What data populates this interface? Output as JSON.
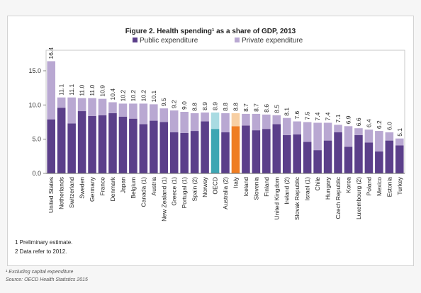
{
  "chart_data": {
    "type": "bar",
    "stacked": true,
    "title": "Figure 2. Health spending¹ as a share of GDP, 2013",
    "xlabel": "",
    "ylabel": "",
    "ylim": [
      0,
      18
    ],
    "yticks": [
      0,
      5,
      10,
      15
    ],
    "ytick_labels": [
      "0.0",
      "5.0",
      "10.0",
      "15.0"
    ],
    "grid": false,
    "legend_position": "top",
    "colors": {
      "public": "#5b3f8a",
      "private": "#b9a8d2",
      "highlight_oecd_public": "#3da6b3",
      "highlight_oecd_private": "#a9dbe2",
      "highlight_italy_public": "#ef7d22",
      "highlight_italy_private": "#f7cfa3"
    },
    "categories": [
      "United States",
      "Netherlands",
      "Switzerland",
      "Sweden",
      "Germany",
      "France",
      "Denmark",
      "Japan",
      "Belgium",
      "Canada (1)",
      "Austria",
      "New Zealand (1)",
      "Greece (1)",
      "Portugal (1)",
      "Spain (2)",
      "Norway",
      "OECD",
      "Australia (2)",
      "Italy",
      "Iceland",
      "Slovenia",
      "Finland",
      "United Kingdom",
      "Ireland (2)",
      "Slovak Republic",
      "Israel (1)",
      "Chile",
      "Hungary",
      "Czech Republic",
      "Korea",
      "Luxembourg (2)",
      "Poland",
      "Mexico",
      "Estonia",
      "Turkey"
    ],
    "totals_labels": [
      "16.4",
      "11.1",
      "11.1",
      "11.0",
      "11.0",
      "10.9",
      "10.4",
      "10.2",
      "10.2",
      "10.2",
      "10.1",
      "9.5",
      "9.2",
      "9.0",
      "8.8",
      "8.9",
      "8.9",
      "8.8",
      "8.8",
      "8.7",
      "8.7",
      "8.6",
      "8.5",
      "8.1",
      "7.6",
      "7.5",
      "7.4",
      "7.4",
      "7.1",
      "6.9",
      "6.6",
      "6.4",
      "6.2",
      "6.0",
      "5.1"
    ],
    "highlight": {
      "OECD": "oecd",
      "Italy": "italy"
    },
    "series": [
      {
        "name": "Public expenditure",
        "values": [
          7.9,
          9.6,
          7.3,
          9.1,
          8.4,
          8.5,
          8.8,
          8.3,
          8.0,
          7.2,
          7.7,
          7.5,
          6.0,
          5.9,
          6.2,
          7.6,
          6.5,
          6.0,
          6.9,
          7.0,
          6.3,
          6.5,
          7.2,
          5.6,
          5.7,
          4.6,
          3.4,
          4.8,
          6.0,
          3.9,
          5.6,
          4.5,
          3.2,
          4.8,
          4.1
        ]
      },
      {
        "name": "Private expenditure",
        "values": [
          8.5,
          1.5,
          3.8,
          1.9,
          2.6,
          2.4,
          1.6,
          1.9,
          2.2,
          3.0,
          2.4,
          2.0,
          3.2,
          3.1,
          2.6,
          1.3,
          2.4,
          2.8,
          1.9,
          1.7,
          2.4,
          2.1,
          1.3,
          2.5,
          1.9,
          2.9,
          4.0,
          2.6,
          1.1,
          3.0,
          1.0,
          1.9,
          3.0,
          1.2,
          1.0
        ]
      }
    ],
    "notes": [
      "1 Preliminary estimate.",
      "2 Data refer to 2012."
    ],
    "footnotes": [
      "¹ Excluding capital expenditure",
      "Source: OECD Health Statistics 2015"
    ]
  }
}
